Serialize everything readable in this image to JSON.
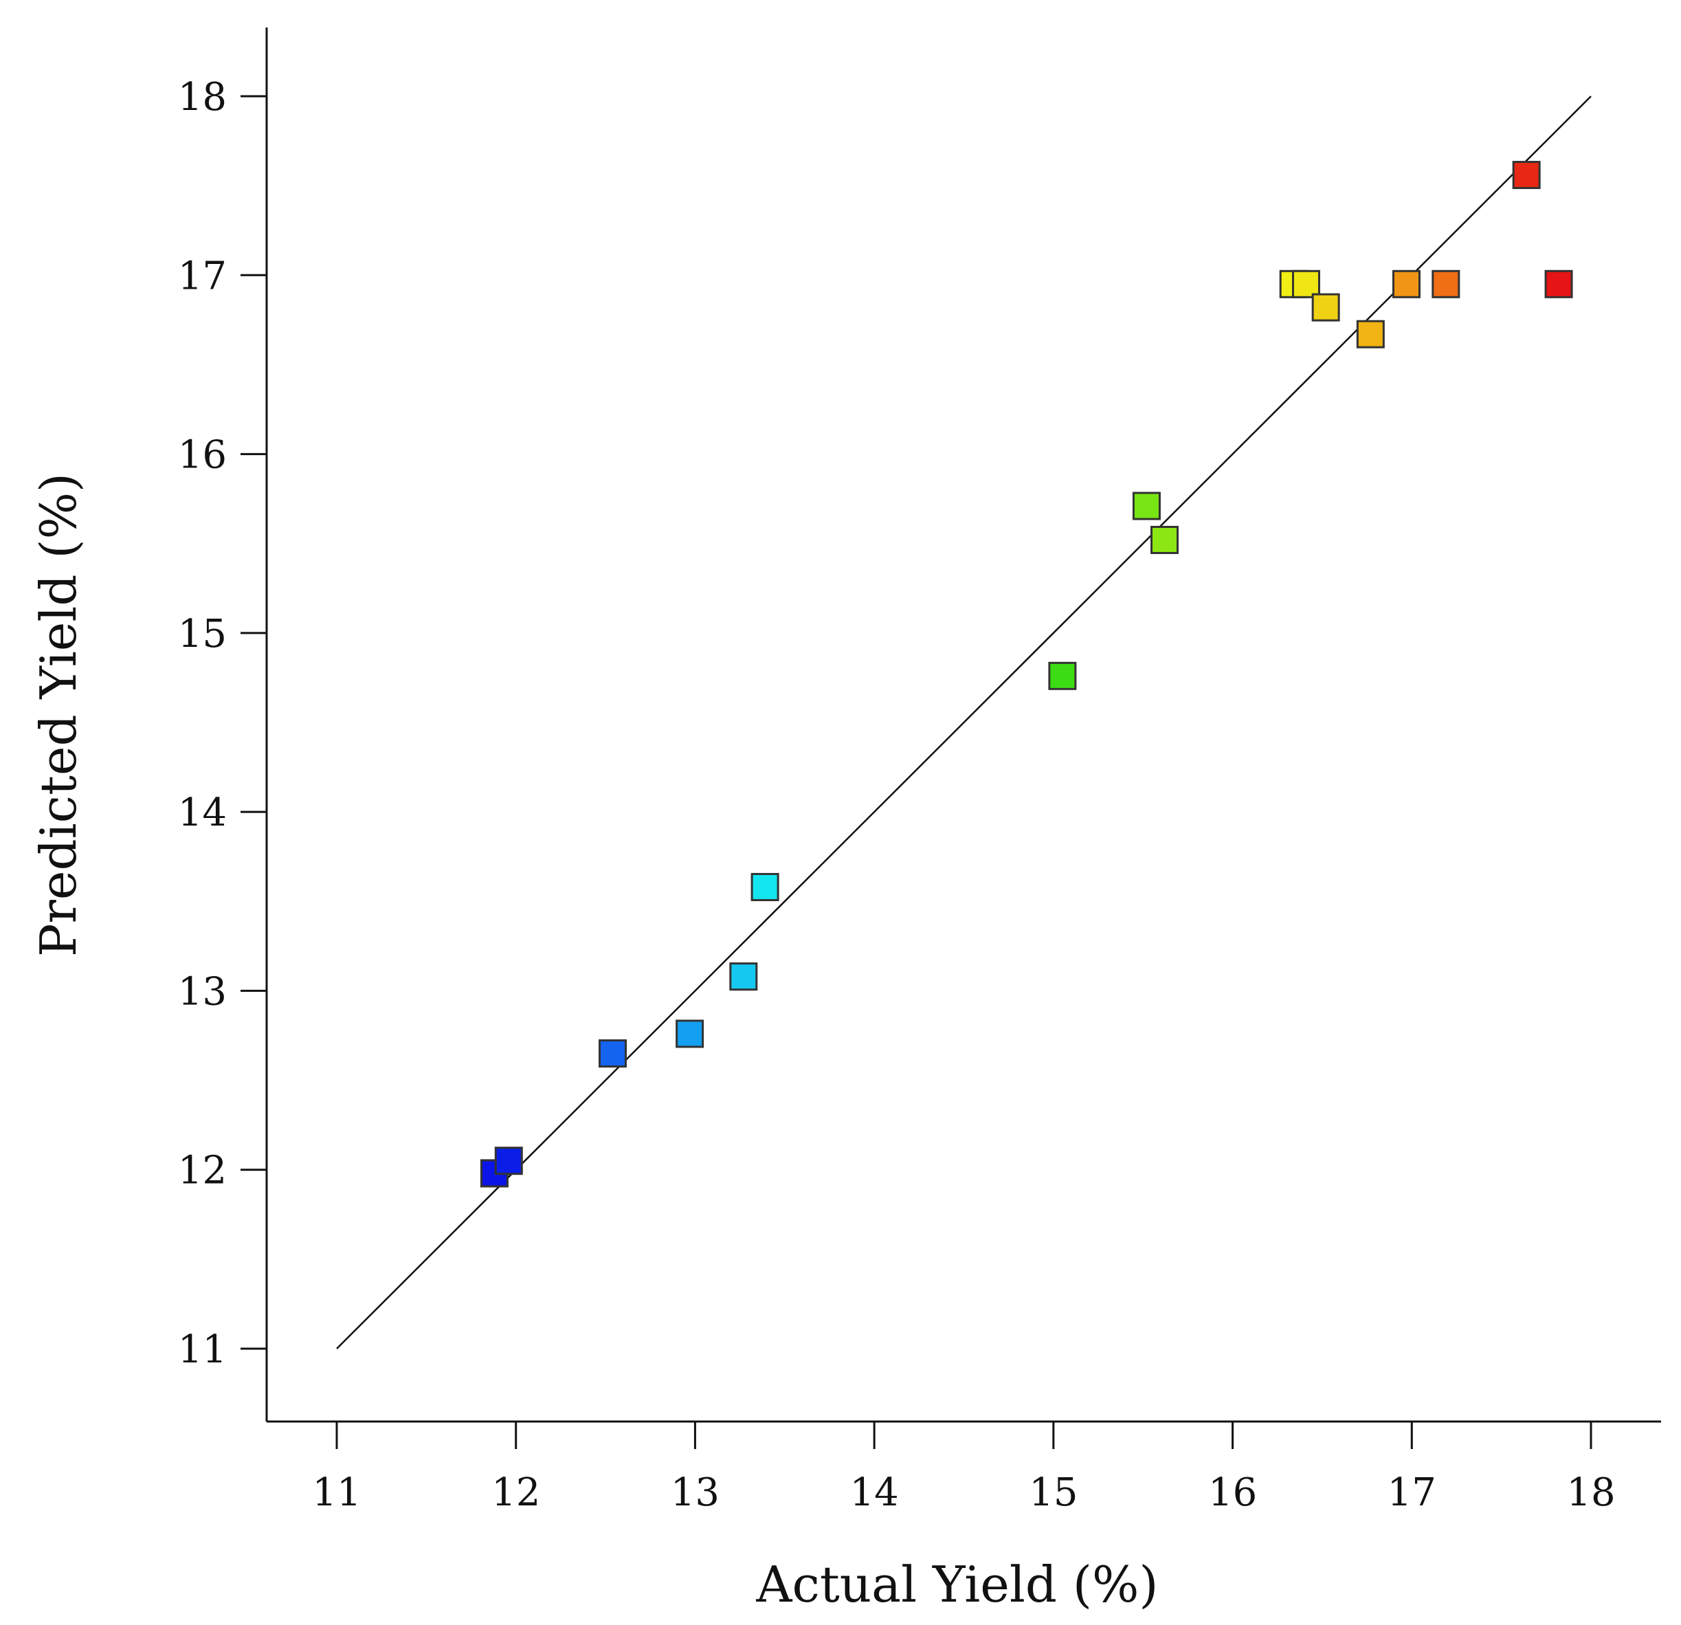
{
  "chart_data": {
    "type": "scatter",
    "title": "",
    "xlabel": "Actual Yield (%)",
    "ylabel": "Predicted Yield (%)",
    "xlim": [
      10.6,
      18.4
    ],
    "ylim": [
      10.6,
      18.4
    ],
    "xticks": [
      11,
      12,
      13,
      14,
      15,
      16,
      17,
      18
    ],
    "yticks": [
      11,
      12,
      13,
      14,
      15,
      16,
      17,
      18
    ],
    "grid": false,
    "reference_line": {
      "from": [
        11,
        11
      ],
      "to": [
        18,
        18
      ]
    },
    "marker": "square",
    "series": [
      {
        "name": "runs",
        "points": [
          {
            "x": 11.88,
            "y": 11.98,
            "color": "#0a14e6"
          },
          {
            "x": 11.96,
            "y": 12.05,
            "color": "#0a1ee8"
          },
          {
            "x": 12.54,
            "y": 12.65,
            "color": "#1464f0"
          },
          {
            "x": 12.97,
            "y": 12.76,
            "color": "#14a0f0"
          },
          {
            "x": 13.27,
            "y": 13.08,
            "color": "#14c8f0"
          },
          {
            "x": 13.39,
            "y": 13.58,
            "color": "#14e6f0"
          },
          {
            "x": 15.05,
            "y": 14.76,
            "color": "#3cdc14"
          },
          {
            "x": 15.52,
            "y": 15.71,
            "color": "#78e614"
          },
          {
            "x": 15.62,
            "y": 15.52,
            "color": "#8ce614"
          },
          {
            "x": 16.34,
            "y": 16.95,
            "color": "#f0f014"
          },
          {
            "x": 16.41,
            "y": 16.95,
            "color": "#f0e614"
          },
          {
            "x": 16.52,
            "y": 16.82,
            "color": "#f0d214"
          },
          {
            "x": 16.77,
            "y": 16.67,
            "color": "#f0b414"
          },
          {
            "x": 16.97,
            "y": 16.95,
            "color": "#f09614"
          },
          {
            "x": 17.19,
            "y": 16.95,
            "color": "#f06e14"
          },
          {
            "x": 17.64,
            "y": 17.56,
            "color": "#e62814"
          },
          {
            "x": 17.82,
            "y": 16.95,
            "color": "#e61414"
          }
        ]
      }
    ]
  }
}
